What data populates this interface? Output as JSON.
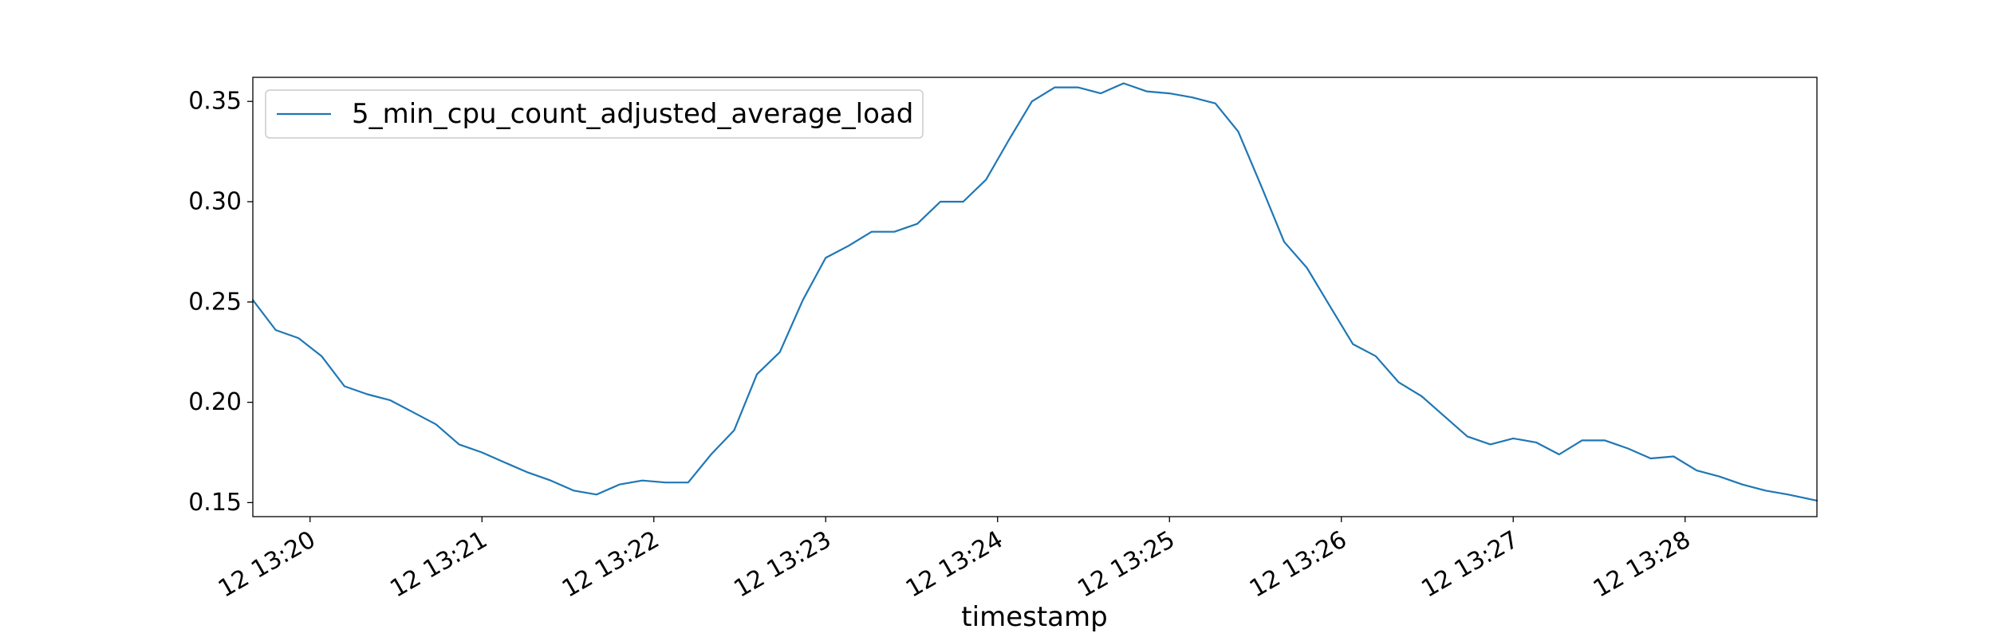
{
  "chart_data": {
    "type": "line",
    "title": "",
    "xlabel": "timestamp",
    "ylabel": "",
    "x_unit": "minutes past 13:00 on day 12",
    "x_ticks": [
      {
        "value": 20,
        "label": "12 13:20"
      },
      {
        "value": 21,
        "label": "12 13:21"
      },
      {
        "value": 22,
        "label": "12 13:22"
      },
      {
        "value": 23,
        "label": "12 13:23"
      },
      {
        "value": 24,
        "label": "12 13:24"
      },
      {
        "value": 25,
        "label": "12 13:25"
      },
      {
        "value": 26,
        "label": "12 13:26"
      },
      {
        "value": 27,
        "label": "12 13:27"
      },
      {
        "value": 28,
        "label": "12 13:28"
      }
    ],
    "y_ticks": [
      {
        "value": 0.15,
        "label": "0.15"
      },
      {
        "value": 0.2,
        "label": "0.20"
      },
      {
        "value": 0.25,
        "label": "0.25"
      },
      {
        "value": 0.3,
        "label": "0.30"
      },
      {
        "value": 0.35,
        "label": "0.35"
      }
    ],
    "xlim": [
      19.667,
      28.767
    ],
    "ylim": [
      0.143,
      0.362
    ],
    "grid": false,
    "legend_position": "upper-left",
    "color": "#1f77b4",
    "series": [
      {
        "name": "5_min_cpu_count_adjusted_average_load",
        "x": [
          19.667,
          19.8,
          19.933,
          20.067,
          20.2,
          20.333,
          20.467,
          20.6,
          20.733,
          20.867,
          21.0,
          21.133,
          21.267,
          21.4,
          21.533,
          21.667,
          21.8,
          21.933,
          22.067,
          22.2,
          22.333,
          22.467,
          22.6,
          22.733,
          22.867,
          23.0,
          23.133,
          23.267,
          23.4,
          23.533,
          23.667,
          23.8,
          23.933,
          24.067,
          24.2,
          24.333,
          24.467,
          24.6,
          24.733,
          24.867,
          25.0,
          25.133,
          25.267,
          25.4,
          25.533,
          25.667,
          25.8,
          25.933,
          26.067,
          26.2,
          26.333,
          26.467,
          26.6,
          26.733,
          26.867,
          27.0,
          27.133,
          27.267,
          27.4,
          27.533,
          27.667,
          27.8,
          27.933,
          28.067,
          28.2,
          28.333,
          28.467,
          28.6,
          28.767
        ],
        "values": [
          0.251,
          0.236,
          0.232,
          0.223,
          0.208,
          0.204,
          0.201,
          0.195,
          0.189,
          0.179,
          0.175,
          0.17,
          0.165,
          0.161,
          0.156,
          0.154,
          0.159,
          0.161,
          0.16,
          0.16,
          0.174,
          0.186,
          0.214,
          0.225,
          0.251,
          0.272,
          0.278,
          0.285,
          0.285,
          0.289,
          0.3,
          0.3,
          0.311,
          0.331,
          0.35,
          0.357,
          0.357,
          0.354,
          0.359,
          0.355,
          0.354,
          0.352,
          0.349,
          0.335,
          0.308,
          0.28,
          0.267,
          0.248,
          0.229,
          0.223,
          0.21,
          0.203,
          0.193,
          0.183,
          0.179,
          0.182,
          0.18,
          0.174,
          0.181,
          0.181,
          0.177,
          0.172,
          0.173,
          0.166,
          0.163,
          0.159,
          0.156,
          0.154,
          0.151
        ]
      }
    ]
  }
}
